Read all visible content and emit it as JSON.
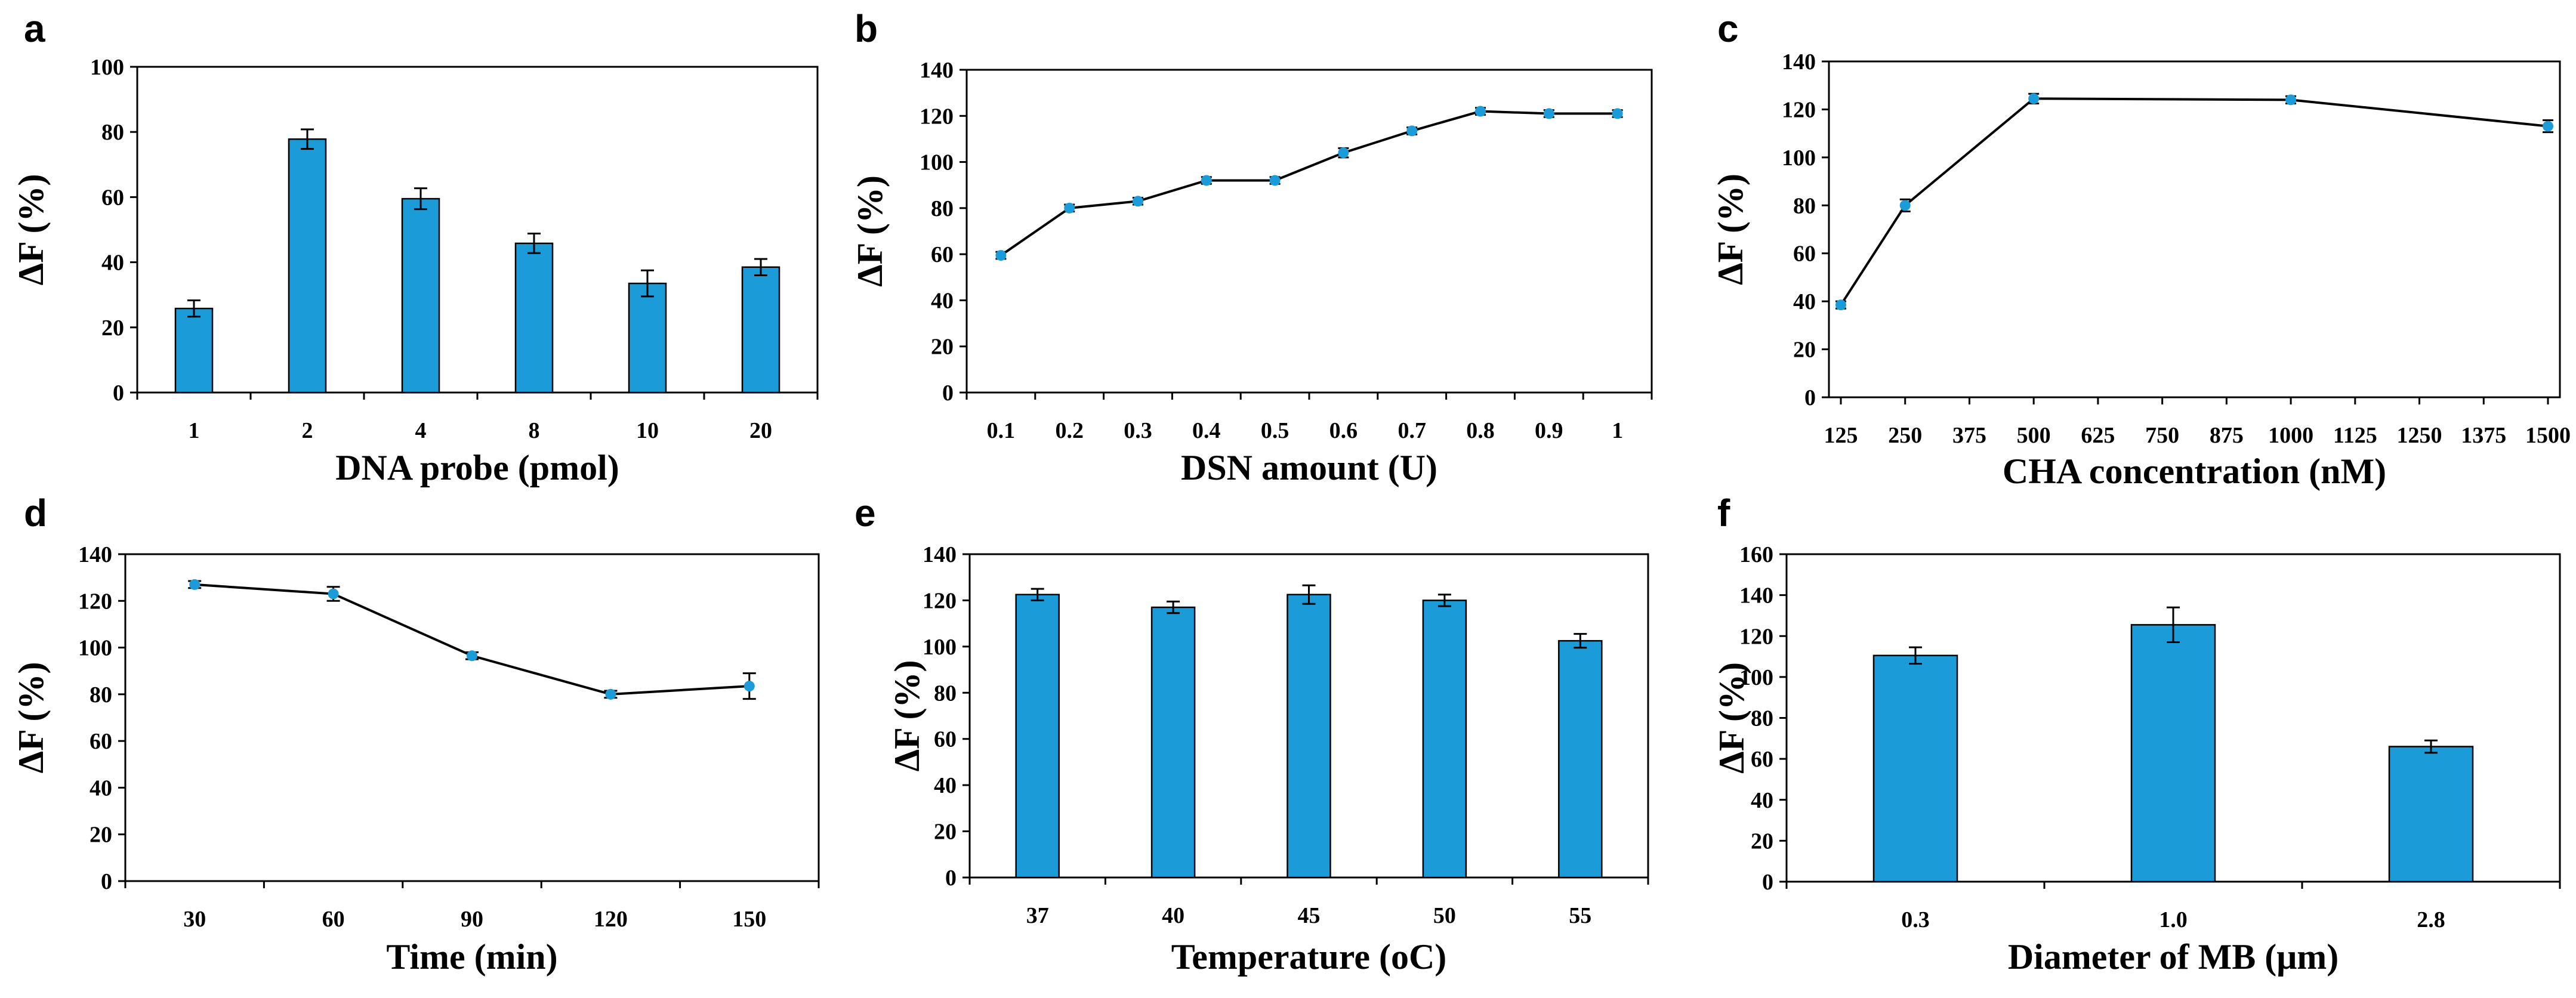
{
  "colors": {
    "bar": "#1B9BD7",
    "line": "#000000",
    "marker": "#1B9BD7",
    "axis": "#000000"
  },
  "chart_data": [
    {
      "id": "a",
      "panel_label": "a",
      "type": "bar",
      "categories": [
        "1",
        "2",
        "4",
        "8",
        "10",
        "20"
      ],
      "values": [
        25.8,
        77.8,
        59.5,
        45.8,
        33.5,
        38.5
      ],
      "errors": [
        2.5,
        3.0,
        3.2,
        3.0,
        4.0,
        2.5
      ],
      "xlabel": "DNA probe (pmol)",
      "ylabel": "ΔF (%)",
      "ylim": [
        0,
        100
      ],
      "yticks": [
        0,
        20,
        40,
        60,
        80,
        100
      ],
      "grid": false
    },
    {
      "id": "b",
      "panel_label": "b",
      "type": "line",
      "categories": [
        "0.1",
        "0.2",
        "0.3",
        "0.4",
        "0.5",
        "0.6",
        "0.7",
        "0.8",
        "0.9",
        "1"
      ],
      "values": [
        59.5,
        80,
        83,
        92,
        92,
        104,
        113.5,
        122,
        121,
        121
      ],
      "errors": [
        1.5,
        1.5,
        1.5,
        1.5,
        1.5,
        2.0,
        1.5,
        1.5,
        1.5,
        1.5
      ],
      "xlabel": "DSN amount (U)",
      "ylabel": "ΔF (%)",
      "ylim": [
        0,
        140
      ],
      "yticks": [
        0,
        20,
        40,
        60,
        80,
        100,
        120,
        140
      ],
      "grid": false
    },
    {
      "id": "c",
      "panel_label": "c",
      "type": "line",
      "x": [
        125,
        250,
        500,
        1000,
        1500
      ],
      "values": [
        38.5,
        80,
        124.5,
        124,
        113
      ],
      "errors": [
        1.5,
        2.5,
        2.0,
        1.5,
        2.5
      ],
      "xlim": [
        125,
        1500
      ],
      "xticks": [
        "125",
        "250",
        "375",
        "500",
        "625",
        "750",
        "875",
        "1000",
        "1125",
        "1250",
        "1375",
        "1500"
      ],
      "xlabel": "CHA concentration (nM)",
      "ylabel": "ΔF (%)",
      "ylim": [
        0,
        140
      ],
      "yticks": [
        0,
        20,
        40,
        60,
        80,
        100,
        120,
        140
      ],
      "grid": false
    },
    {
      "id": "d",
      "panel_label": "d",
      "type": "line",
      "categories": [
        "30",
        "60",
        "90",
        "120",
        "150"
      ],
      "values": [
        127,
        123,
        96.5,
        80,
        83.5
      ],
      "errors": [
        1.5,
        3.0,
        1.5,
        1.5,
        5.5
      ],
      "xlabel": "Time (min)",
      "ylabel": "ΔF (%)",
      "ylim": [
        0,
        140
      ],
      "yticks": [
        0,
        20,
        40,
        60,
        80,
        100,
        120,
        140
      ],
      "grid": false
    },
    {
      "id": "e",
      "panel_label": "e",
      "type": "bar",
      "categories": [
        "37",
        "40",
        "45",
        "50",
        "55"
      ],
      "values": [
        122.5,
        117,
        122.5,
        120,
        102.5
      ],
      "errors": [
        2.5,
        2.5,
        4.0,
        2.5,
        3.0
      ],
      "xlabel": "Temperature (oC)",
      "ylabel": "ΔF (%)",
      "ylim": [
        0,
        140
      ],
      "yticks": [
        0,
        20,
        40,
        60,
        80,
        100,
        120,
        140
      ],
      "grid": false
    },
    {
      "id": "f",
      "panel_label": "f",
      "type": "bar",
      "categories": [
        "0.3",
        "1.0",
        "2.8"
      ],
      "values": [
        110.5,
        125.5,
        66
      ],
      "errors": [
        4.0,
        8.5,
        3.0
      ],
      "xlabel": "Diameter of MB (μm)",
      "ylabel": "ΔF (%)",
      "ylim": [
        0,
        160
      ],
      "yticks": [
        0,
        20,
        40,
        60,
        80,
        100,
        120,
        140,
        160
      ],
      "grid": false
    }
  ]
}
